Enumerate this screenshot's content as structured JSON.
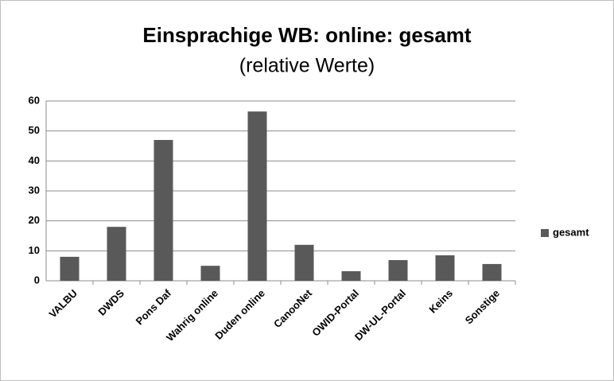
{
  "chart_data": {
    "type": "bar",
    "title": "Einsprachige WB: online: gesamt",
    "subtitle": "(relative Werte)",
    "categories": [
      "VALBU",
      "DWDS",
      "Pons Daf",
      "Wahrig online",
      "Duden online",
      "CanooNet",
      "OWID-Portal",
      "DW-UL-Portal",
      "Keins",
      "Sonstige"
    ],
    "series": [
      {
        "name": "gesamt",
        "color": "#595959",
        "values": [
          8,
          18,
          47,
          5,
          56.5,
          12,
          3.2,
          6.9,
          8.5,
          5.6
        ]
      }
    ],
    "ylim": [
      0,
      60
    ],
    "yticks": [
      0,
      10,
      20,
      30,
      40,
      50,
      60
    ],
    "grid": true,
    "legend": "right"
  }
}
